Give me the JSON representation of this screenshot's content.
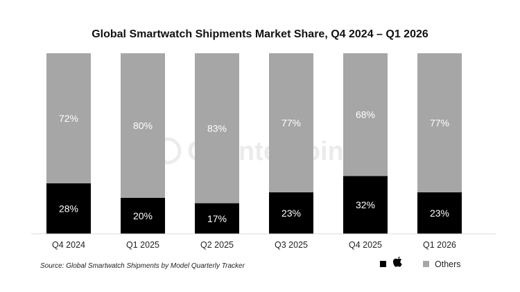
{
  "chart_data": {
    "type": "bar",
    "stacked": true,
    "title": "Global Smartwatch Shipments Market Share, Q4 2024 – Q1 2026",
    "categories": [
      "Q4 2024",
      "Q1 2025",
      "Q2 2025",
      "Q3 2025",
      "Q4 2025",
      "Q1 2026"
    ],
    "series": [
      {
        "name": "",
        "legend_icon": "apple-logo-icon",
        "color": "#000000",
        "values": [
          28,
          20,
          17,
          23,
          32,
          23
        ]
      },
      {
        "name": "Others",
        "color": "#a6a6a6",
        "values": [
          72,
          80,
          83,
          77,
          68,
          77
        ]
      }
    ],
    "unit_suffix": "%",
    "ylim": [
      0,
      100
    ],
    "grid": false,
    "legend": "bottom-right",
    "source": "Source: Global Smartwatch Shipments by Model Quarterly Tracker",
    "watermark": "Counterpoint"
  }
}
